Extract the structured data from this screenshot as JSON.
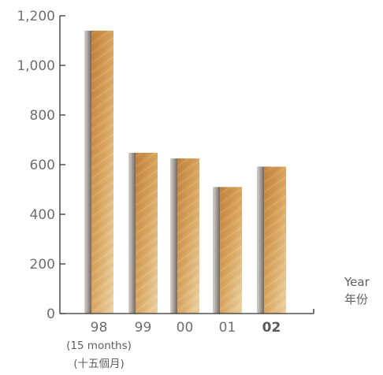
{
  "chart_data": {
    "type": "bar",
    "categories": [
      "98",
      "99",
      "00",
      "01",
      "02"
    ],
    "highlight_category": "02",
    "values": [
      1140,
      648,
      625,
      510,
      592
    ],
    "category_notes": [
      "(15 months)",
      "(十五個月)"
    ],
    "ylim": [
      0,
      1200
    ],
    "yticks": [
      0,
      200,
      400,
      600,
      800,
      1000,
      1200
    ],
    "ytick_labels": [
      "0",
      "200",
      "400",
      "600",
      "800",
      "1,000",
      "1,200"
    ],
    "xlabel": [
      "Year",
      "年份"
    ],
    "ylabel": "",
    "title": "",
    "grid": false,
    "colors": {
      "bar_dark": "#c2803a",
      "bar_light": "#e6c491",
      "shadow": "#8d8580",
      "axis": "#333333"
    }
  }
}
